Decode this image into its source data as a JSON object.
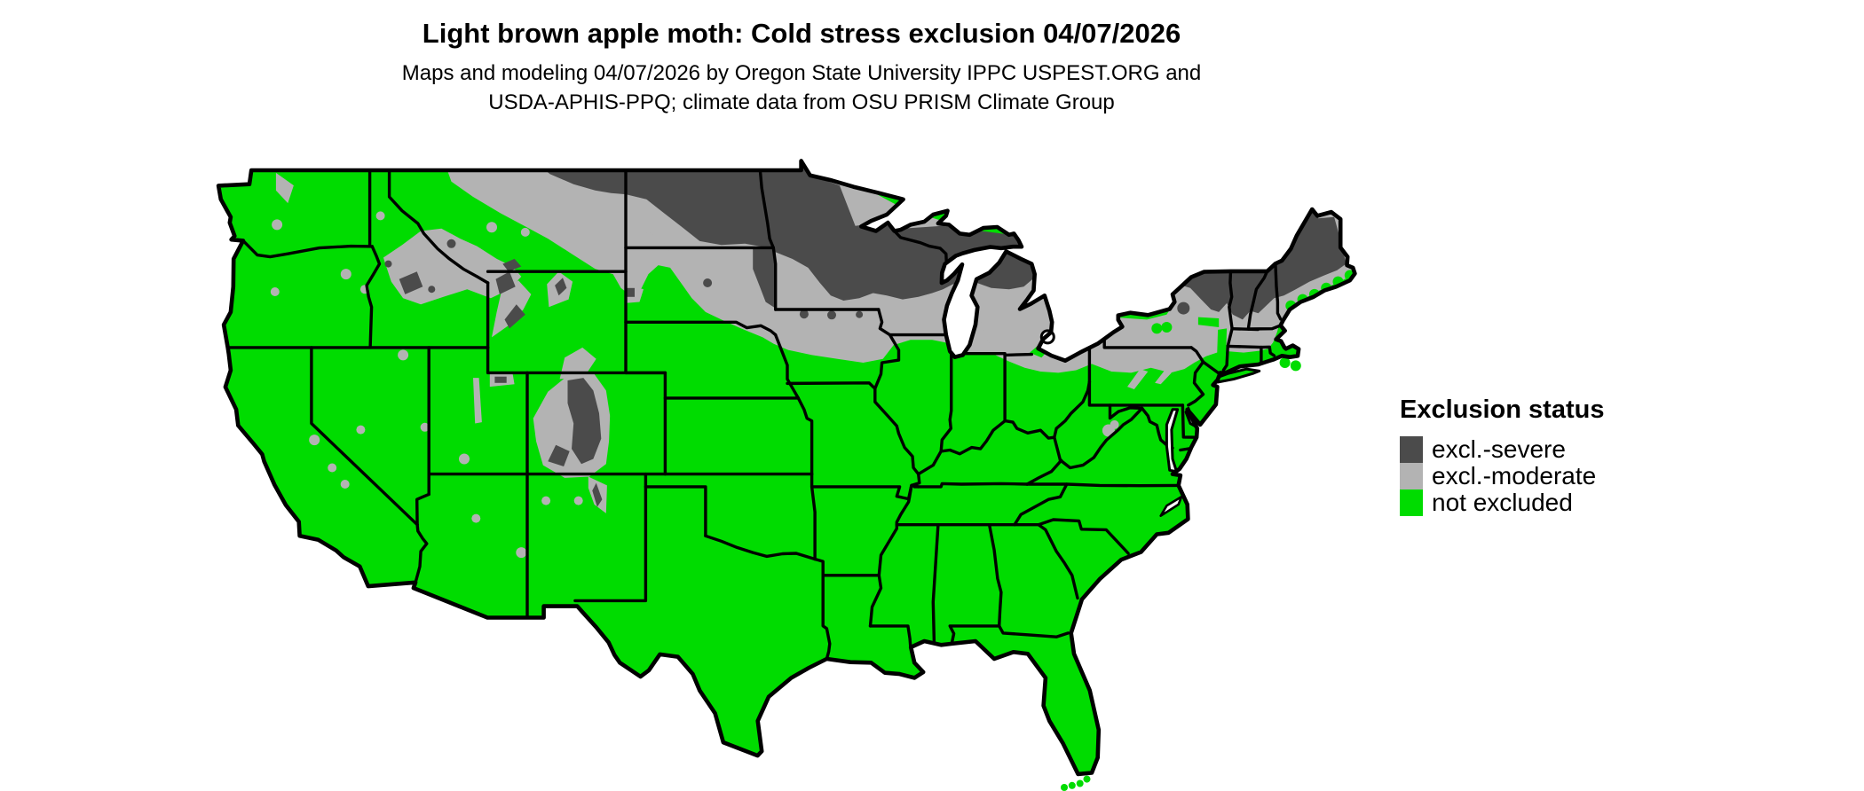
{
  "title": "Light brown apple moth: Cold stress exclusion 04/07/2026",
  "subtitle": {
    "line1": "Maps and modeling 04/07/2026 by Oregon State University IPPC USPEST.ORG and",
    "line2": "USDA-APHIS-PPQ; climate data from OSU PRISM Climate Group"
  },
  "legend": {
    "heading": "Exclusion status",
    "items": [
      {
        "label": "excl.-severe",
        "color": "#4b4b4b"
      },
      {
        "label": "excl.-moderate",
        "color": "#b3b3b3"
      },
      {
        "label": "not excluded",
        "color": "#00dc00"
      }
    ]
  },
  "map": {
    "type": "choropleth raster map",
    "region": "Contiguous United States (lower 48 states)",
    "border_color": "#000000",
    "water_color": "#ffffff",
    "categories": [
      {
        "status": "excl.-severe",
        "color": "#4b4b4b",
        "areas": "northeastern Montana, most of North Dakota, northern Minnesota, northern Wisconsin, Michigan Upper Peninsula and northern Lower Michigan, far eastern South Dakota, Adirondacks of New York, most of Vermont, New Hampshire and inland Maine, high Rockies of Colorado, Wyoming and Idaho, Sangre de Cristo range of New Mexico, Black Hills"
      },
      {
        "status": "excl.-moderate",
        "color": "#b3b3b3",
        "areas": "Montana Hi-Line, southwestern North Dakota, eastern South Dakota, northern Iowa, southern Minnesota, southern Wisconsin, central Lower Michigan, northern Ohio-Indiana fringe, northern Pennsylvania, most of New York, southern New England, Maine coastal fringe, mountain areas of Idaho, Montana, Wyoming, Utah, Colorado, northern New Mexico and scattered western ranges"
      },
      {
        "status": "not excluded",
        "color": "#00dc00",
        "areas": "Pacific Coast states, Great Basin and Southwest, southern Plains, Texas, Midwest south of about 42 N, the South, mid-Atlantic, coastal New England, Long Island and Florida"
      }
    ]
  }
}
